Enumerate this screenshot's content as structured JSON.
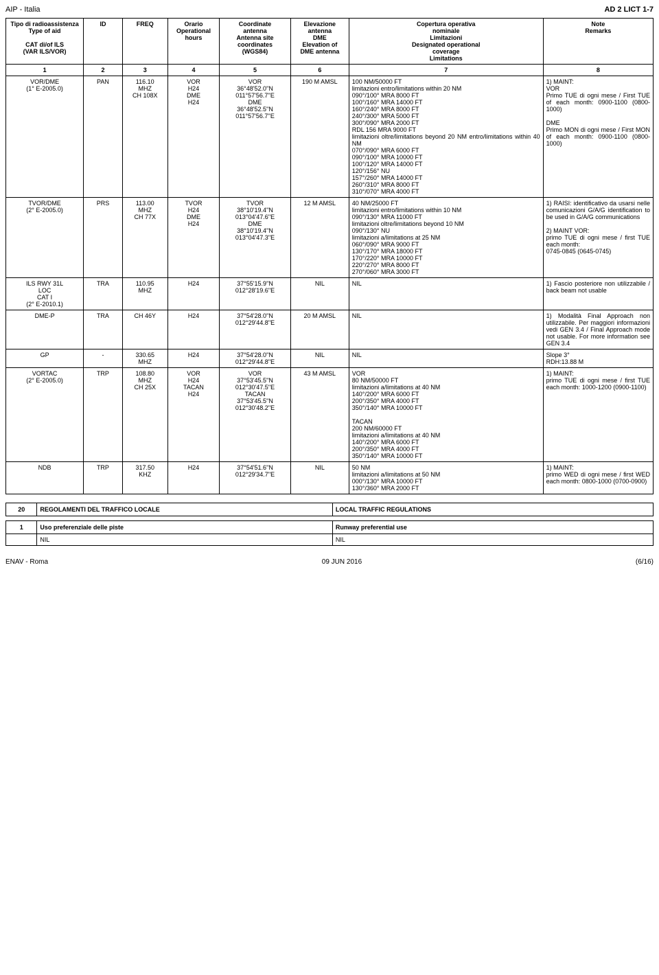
{
  "header": {
    "left": "AIP - Italia",
    "right": "AD 2 LICT 1-7"
  },
  "cols": [
    {
      "w": "12%",
      "t": "Tipo di radioassistenza\nType of aid\n\nCAT di/of ILS\n(VAR ILS/VOR)"
    },
    {
      "w": "6%",
      "t": "ID"
    },
    {
      "w": "7%",
      "t": "FREQ"
    },
    {
      "w": "8%",
      "t": "Orario\nOperational\nhours"
    },
    {
      "w": "11%",
      "t": "Coordinate\nantenna\nAntenna site\ncoordinates\n(WGS84)"
    },
    {
      "w": "9%",
      "t": "Elevazione\nantenna\nDME\nElevation of\nDME antenna"
    },
    {
      "w": "30%",
      "t": "Copertura operativa\nnominale\nLimitazioni\nDesignated operational\ncoverage\nLimitations"
    },
    {
      "w": "17%",
      "t": "Note\nRemarks"
    }
  ],
  "numrow": [
    "1",
    "2",
    "3",
    "4",
    "5",
    "6",
    "7",
    "8"
  ],
  "rows": [
    {
      "c0": "VOR/DME\n(1° E-2005.0)",
      "c1": "PAN",
      "c2": "116.10\nMHZ\nCH 108X",
      "c3": "VOR\nH24\nDME\nH24",
      "c4": "VOR\n36°48'52.0''N\n011°57'56.7''E\nDME\n36°48'52.5''N\n011°57'56.7''E",
      "c5": "190 M AMSL",
      "c6": "100 NM/50000 FT\nlimitazioni entro/limitations within 20 NM\n090°/100° MRA 8000 FT\n100°/160° MRA 14000 FT\n160°/240° MRA 8000 FT\n240°/300° MRA 5000 FT\n300°/090° MRA 2000 FT\nRDL 156 MRA 9000 FT\nlimitazioni oltre/limitations beyond 20 NM entro/limitations within 40 NM\n070°/090° MRA 6000 FT\n090°/100° MRA 10000 FT\n100°/120° MRA 14000 FT\n120°/156° NU\n157°/260° MRA 14000 FT\n260°/310° MRA 8000 FT\n310°/070° MRA 4000 FT",
      "c7": "1) MAINT:\nVOR\nPrimo TUE di ogni mese / First TUE of each month: 0900-1100 (0800-1000)\n\nDME\nPrimo MON di ogni mese / First MON of each month: 0900-1100 (0800-1000)"
    },
    {
      "c0": "TVOR/DME\n(2° E-2005.0)",
      "c1": "PRS",
      "c2": "113.00\nMHZ\nCH 77X",
      "c3": "TVOR\nH24\nDME\nH24",
      "c4": "TVOR\n38°10'19.4''N\n013°04'47.6''E\nDME\n38°10'19.4''N\n013°04'47.3''E",
      "c5": "12 M AMSL",
      "c6": "40 NM/25000 FT\nlimitazioni entro/limitations within 10 NM\n090°/130° MRA 11000 FT\nlimitazioni oltre/limitations beyond 10 NM\n090°/130° NU\nlimitazioni a/limitations at 25 NM\n060°/090° MRA 9000 FT\n130°/170° MRA 18000 FT\n170°/220° MRA 10000 FT\n220°/270° MRA 8000 FT\n270°/060° MRA 3000 FT",
      "c7": "1) RAISI: identificativo da usarsi nelle comunicazioni G/A/G identification to be used in G/A/G communications\n\n2) MAINT VOR:\nprimo TUE di ogni mese / first TUE each month:\n0745-0845 (0645-0745)"
    },
    {
      "c0": "ILS RWY 31L\nLOC\nCAT I\n(2° E-2010.1)",
      "c1": "TRA",
      "c2": "110.95\nMHZ",
      "c3": "H24",
      "c4": "37°55'15.9''N\n012°28'19.6''E",
      "c5": "NIL",
      "c6": "NIL",
      "c7": "1) Fascio posteriore non utilizzabile / back beam not usable"
    },
    {
      "c0": "DME-P",
      "c1": "TRA",
      "c2": "CH 46Y",
      "c3": "H24",
      "c4": "37°54'28.0''N\n012°29'44.8''E",
      "c5": "20 M AMSL",
      "c6": "NIL",
      "c7": "1) Modalità Final Approach non utilizzabile. Per maggiori informazioni vedi GEN 3.4 / Final Approach mode not usable. For more information see GEN 3.4"
    },
    {
      "c0": "GP",
      "c1": "-",
      "c2": "330.65\nMHZ",
      "c3": "H24",
      "c4": "37°54'28.0''N\n012°29'44.8''E",
      "c5": "NIL",
      "c6": "NIL",
      "c7": "Slope 3°\nRDH:13.88 M"
    },
    {
      "c0": "VORTAC\n(2° E-2005.0)",
      "c1": "TRP",
      "c2": "108.80\nMHZ\nCH 25X",
      "c3": "VOR\nH24\nTACAN\nH24",
      "c4": "VOR\n37°53'45.5''N\n012°30'47.5''E\nTACAN\n37°53'45.5''N\n012°30'48.2''E",
      "c5": "43 M AMSL",
      "c6": "VOR\n80 NM/50000 FT\nlimitazioni a/limitations at 40 NM\n140°/200° MRA 6000 FT\n200°/350° MRA 4000 FT\n350°/140° MRA 10000 FT\n\nTACAN\n200 NM/60000 FT\nlimitazioni a/limitations at 40 NM\n140°/200° MRA 6000 FT\n200°/350° MRA 4000 FT\n350°/140° MRA 10000 FT",
      "c7": "1) MAINT:\nprimo TUE di ogni mese / first TUE each month: 1000-1200 (0900-1100)"
    },
    {
      "c0": "NDB",
      "c1": "TRP",
      "c2": "317.50\nKHZ",
      "c3": "H24",
      "c4": "37°54'51.6''N\n012°29'34.7''E",
      "c5": "NIL",
      "c6": "50 NM\nlimitazioni a/limitations at 50 NM\n000°/130° MRA 10000 FT\n130°/360° MRA 2000 FT",
      "c7": "1) MAINT:\nprimo WED di ogni mese / first WED each month: 0800-1000 (0700-0900)"
    }
  ],
  "section20": {
    "num": "20",
    "left": "REGOLAMENTI DEL TRAFFICO LOCALE",
    "right": "LOCAL TRAFFIC REGULATIONS"
  },
  "section1": {
    "num": "1",
    "left": "Uso preferenziale delle piste",
    "right": "Runway preferential use",
    "lval": "NIL",
    "rval": "NIL"
  },
  "footer": {
    "left": "ENAV - Roma",
    "mid": "09 JUN 2016",
    "right": "(6/16)"
  }
}
